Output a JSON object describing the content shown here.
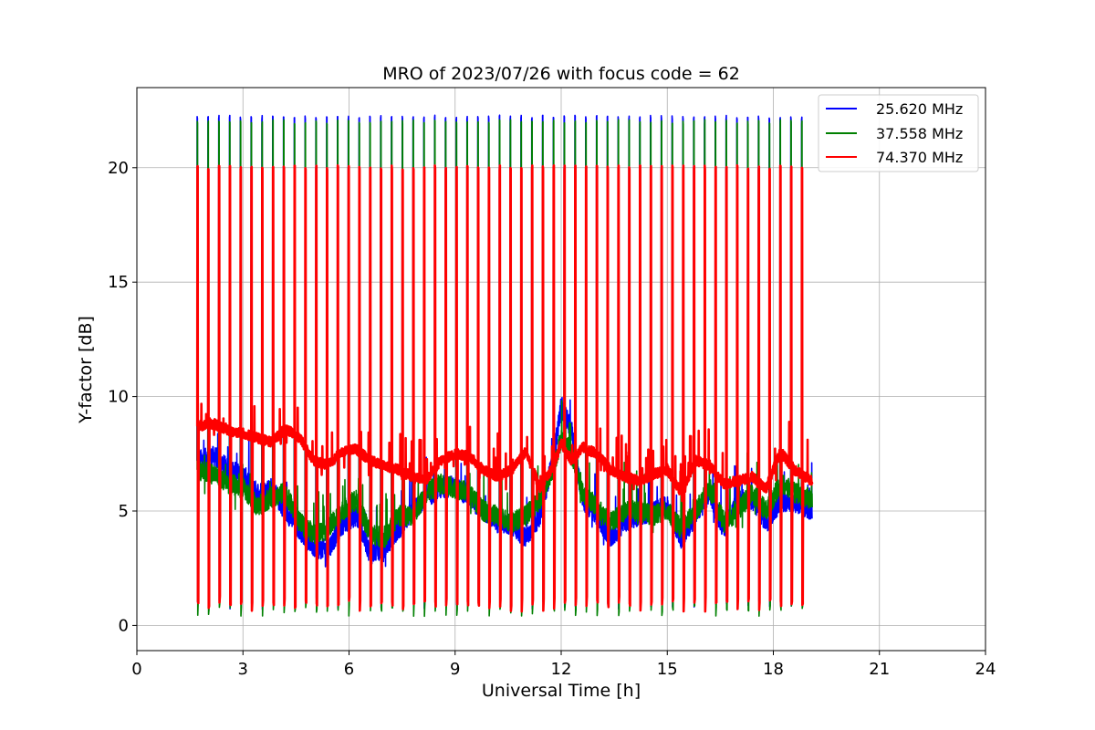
{
  "chart_data": {
    "type": "line",
    "title": "MRO of 2023/07/26 with focus code = 62",
    "xlabel": "Universal Time [h]",
    "ylabel": "Y-factor [dB]",
    "xlim": [
      0,
      24
    ],
    "ylim": [
      -1.1,
      23.5
    ],
    "xticks": [
      0,
      3,
      6,
      9,
      12,
      15,
      18,
      21,
      24
    ],
    "yticks": [
      0,
      5,
      10,
      15,
      20
    ],
    "grid": true,
    "legend_position": "top-right",
    "data_start_h": 1.7,
    "data_end_h": 19.1,
    "calibration_cycles": 57,
    "series": [
      {
        "name": "25.620 MHz",
        "color": "#0000ff",
        "peak_value": 22.2,
        "trough_value": 0.7,
        "baseline": [
          [
            1.7,
            7.2
          ],
          [
            2.2,
            7.4
          ],
          [
            2.6,
            6.8
          ],
          [
            3.0,
            6.6
          ],
          [
            3.4,
            5.8
          ],
          [
            3.8,
            6.0
          ],
          [
            4.2,
            5.0
          ],
          [
            4.6,
            4.2
          ],
          [
            5.0,
            3.4
          ],
          [
            5.4,
            3.3
          ],
          [
            5.8,
            4.4
          ],
          [
            6.2,
            4.8
          ],
          [
            6.6,
            3.1
          ],
          [
            7.0,
            3.4
          ],
          [
            7.4,
            4.2
          ],
          [
            7.8,
            5.0
          ],
          [
            8.2,
            5.6
          ],
          [
            8.6,
            6.0
          ],
          [
            9.0,
            6.1
          ],
          [
            9.4,
            5.6
          ],
          [
            9.8,
            5.0
          ],
          [
            10.2,
            4.5
          ],
          [
            10.6,
            4.4
          ],
          [
            11.0,
            3.8
          ],
          [
            11.4,
            4.8
          ],
          [
            11.8,
            7.5
          ],
          [
            12.0,
            9.6
          ],
          [
            12.3,
            8.5
          ],
          [
            12.6,
            5.5
          ],
          [
            13.0,
            4.8
          ],
          [
            13.4,
            3.8
          ],
          [
            13.8,
            4.5
          ],
          [
            14.2,
            4.8
          ],
          [
            14.6,
            5.0
          ],
          [
            15.0,
            5.2
          ],
          [
            15.4,
            3.8
          ],
          [
            15.8,
            4.8
          ],
          [
            16.2,
            5.8
          ],
          [
            16.6,
            4.2
          ],
          [
            17.0,
            5.5
          ],
          [
            17.4,
            5.5
          ],
          [
            17.8,
            4.5
          ],
          [
            18.2,
            5.4
          ],
          [
            18.6,
            5.4
          ],
          [
            19.1,
            5.0
          ]
        ]
      },
      {
        "name": "37.558 MHz",
        "color": "#008000",
        "peak_value": 22.0,
        "trough_value": 0.4,
        "baseline": [
          [
            1.7,
            6.8
          ],
          [
            2.2,
            6.6
          ],
          [
            2.6,
            6.2
          ],
          [
            3.0,
            6.0
          ],
          [
            3.4,
            5.2
          ],
          [
            3.8,
            5.6
          ],
          [
            4.2,
            5.8
          ],
          [
            4.6,
            4.5
          ],
          [
            5.0,
            4.0
          ],
          [
            5.4,
            4.2
          ],
          [
            5.8,
            5.0
          ],
          [
            6.2,
            5.5
          ],
          [
            6.6,
            4.0
          ],
          [
            7.0,
            3.8
          ],
          [
            7.4,
            4.8
          ],
          [
            7.8,
            4.8
          ],
          [
            8.2,
            5.8
          ],
          [
            8.6,
            6.2
          ],
          [
            9.0,
            6.0
          ],
          [
            9.4,
            5.8
          ],
          [
            9.8,
            5.0
          ],
          [
            10.2,
            4.8
          ],
          [
            10.6,
            4.5
          ],
          [
            11.0,
            4.8
          ],
          [
            11.4,
            5.5
          ],
          [
            11.8,
            7.0
          ],
          [
            12.0,
            8.2
          ],
          [
            12.3,
            7.5
          ],
          [
            12.6,
            5.8
          ],
          [
            13.0,
            5.2
          ],
          [
            13.4,
            4.5
          ],
          [
            13.8,
            5.0
          ],
          [
            14.2,
            5.0
          ],
          [
            14.6,
            4.8
          ],
          [
            15.0,
            5.0
          ],
          [
            15.4,
            4.2
          ],
          [
            15.8,
            5.0
          ],
          [
            16.2,
            6.0
          ],
          [
            16.6,
            4.5
          ],
          [
            17.0,
            5.0
          ],
          [
            17.4,
            5.8
          ],
          [
            17.8,
            5.0
          ],
          [
            18.2,
            6.2
          ],
          [
            18.6,
            5.8
          ],
          [
            19.1,
            5.5
          ]
        ]
      },
      {
        "name": "74.370 MHz",
        "color": "#ff0000",
        "peak_value": 20.0,
        "trough_value": 0.6,
        "baseline": [
          [
            1.7,
            8.7
          ],
          [
            2.2,
            8.8
          ],
          [
            2.6,
            8.5
          ],
          [
            3.0,
            8.4
          ],
          [
            3.4,
            8.2
          ],
          [
            3.8,
            8.0
          ],
          [
            4.2,
            8.6
          ],
          [
            4.6,
            8.2
          ],
          [
            5.0,
            7.2
          ],
          [
            5.4,
            7.0
          ],
          [
            5.8,
            7.6
          ],
          [
            6.2,
            7.7
          ],
          [
            6.6,
            7.2
          ],
          [
            7.0,
            7.0
          ],
          [
            7.4,
            6.8
          ],
          [
            7.8,
            6.5
          ],
          [
            8.2,
            6.4
          ],
          [
            8.6,
            7.2
          ],
          [
            9.0,
            7.5
          ],
          [
            9.4,
            7.4
          ],
          [
            9.8,
            6.8
          ],
          [
            10.2,
            6.5
          ],
          [
            10.6,
            6.8
          ],
          [
            11.0,
            7.6
          ],
          [
            11.4,
            6.0
          ],
          [
            11.8,
            7.0
          ],
          [
            12.0,
            8.0
          ],
          [
            12.3,
            7.2
          ],
          [
            12.6,
            7.8
          ],
          [
            13.0,
            7.5
          ],
          [
            13.4,
            6.8
          ],
          [
            13.8,
            6.5
          ],
          [
            14.2,
            6.3
          ],
          [
            14.6,
            6.6
          ],
          [
            15.0,
            6.8
          ],
          [
            15.4,
            5.8
          ],
          [
            15.8,
            7.2
          ],
          [
            16.2,
            7.0
          ],
          [
            16.6,
            6.2
          ],
          [
            17.0,
            6.3
          ],
          [
            17.4,
            6.5
          ],
          [
            17.8,
            6.0
          ],
          [
            18.2,
            7.6
          ],
          [
            18.6,
            6.8
          ],
          [
            19.1,
            6.3
          ]
        ]
      }
    ]
  }
}
